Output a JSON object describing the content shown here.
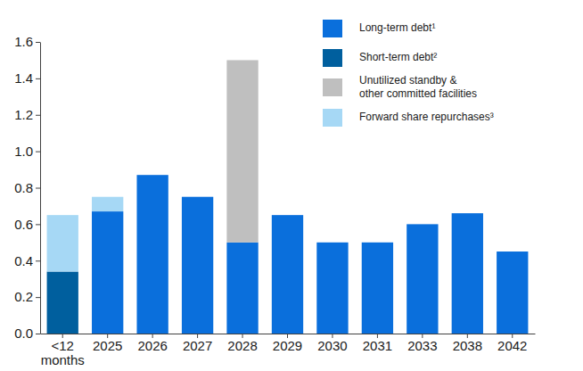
{
  "chart_data": {
    "type": "bar",
    "stacked": true,
    "grid": false,
    "legend": "upper right",
    "data_labels": false,
    "categories": [
      "<12\nmonths",
      "2025",
      "2026",
      "2027",
      "2028",
      "2029",
      "2030",
      "2031",
      "2033",
      "2038",
      "2042"
    ],
    "series": [
      {
        "name": "Long-term debt¹",
        "color": "#0a6fdc",
        "values": [
          null,
          0.67,
          0.87,
          0.75,
          0.5,
          0.65,
          0.5,
          0.5,
          0.6,
          0.66,
          0.45
        ]
      },
      {
        "name": "Short-term debt²",
        "color": "#005f9e",
        "values": [
          0.34,
          null,
          null,
          null,
          null,
          null,
          null,
          null,
          null,
          null,
          null
        ]
      },
      {
        "name": "Unutilized standby &\nother committed facilities",
        "color": "#bfbfbf",
        "values": [
          null,
          null,
          null,
          null,
          1.0,
          null,
          null,
          null,
          null,
          null,
          null
        ]
      },
      {
        "name": "Forward share repurchases³",
        "color": "#a6d8f5",
        "values": [
          0.31,
          0.08,
          null,
          null,
          null,
          null,
          null,
          null,
          null,
          null,
          null
        ]
      }
    ],
    "ylim": [
      0,
      1.6
    ],
    "yticks": [
      {
        "value": 0,
        "label": "0.0"
      },
      0.2,
      0.4,
      0.6,
      0.8,
      {
        "value": 1,
        "label": "1.0"
      },
      1.2,
      1.4,
      1.6
    ]
  }
}
